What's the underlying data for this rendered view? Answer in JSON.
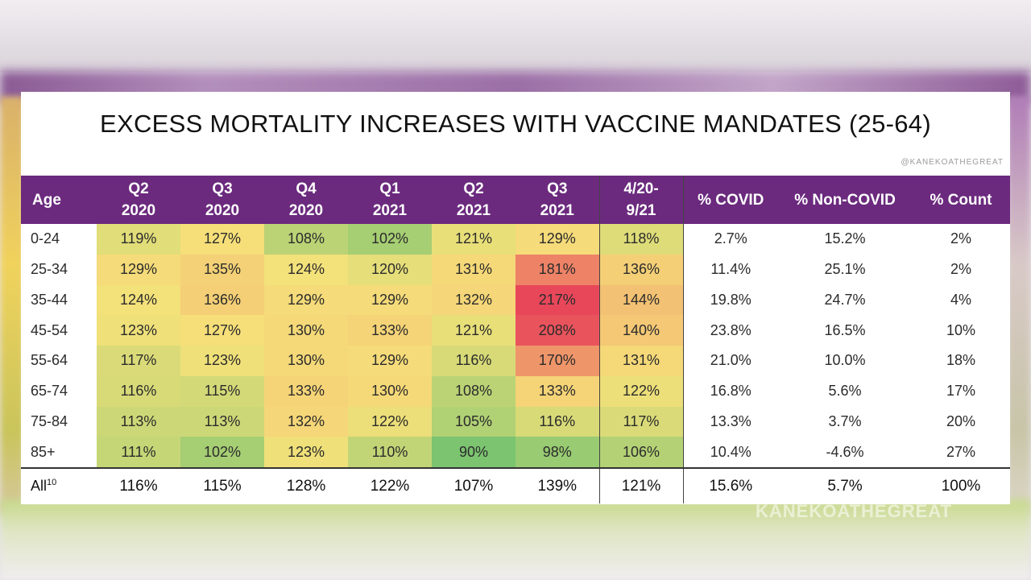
{
  "title": "EXCESS MORTALITY INCREASES WITH VACCINE MANDATES (25-64)",
  "watermark_small": "@KANEKOATHEGREAT",
  "watermark_big": "KANEKOATHEGREAT",
  "chart_data": {
    "type": "table",
    "columns": [
      {
        "line1": "Age",
        "line2": ""
      },
      {
        "line1": "Q2",
        "line2": "2020"
      },
      {
        "line1": "Q3",
        "line2": "2020"
      },
      {
        "line1": "Q4",
        "line2": "2020"
      },
      {
        "line1": "Q1",
        "line2": "2021"
      },
      {
        "line1": "Q2",
        "line2": "2021"
      },
      {
        "line1": "Q3",
        "line2": "2021"
      },
      {
        "line1": "4/20-",
        "line2": "9/21"
      },
      {
        "line1": "% COVID",
        "line2": ""
      },
      {
        "line1": "% Non-COVID",
        "line2": ""
      },
      {
        "line1": "% Count",
        "line2": ""
      }
    ],
    "rows": [
      {
        "age": "0-24",
        "values": [
          119,
          127,
          108,
          102,
          121,
          129,
          118
        ],
        "covid": "2.7%",
        "noncovid": "15.2%",
        "count": "2%"
      },
      {
        "age": "25-34",
        "values": [
          129,
          135,
          124,
          120,
          131,
          181,
          136
        ],
        "covid": "11.4%",
        "noncovid": "25.1%",
        "count": "2%"
      },
      {
        "age": "35-44",
        "values": [
          124,
          136,
          129,
          129,
          132,
          217,
          144
        ],
        "covid": "19.8%",
        "noncovid": "24.7%",
        "count": "4%"
      },
      {
        "age": "45-54",
        "values": [
          123,
          127,
          130,
          133,
          121,
          208,
          140
        ],
        "covid": "23.8%",
        "noncovid": "16.5%",
        "count": "10%"
      },
      {
        "age": "55-64",
        "values": [
          117,
          123,
          130,
          129,
          116,
          170,
          131
        ],
        "covid": "21.0%",
        "noncovid": "10.0%",
        "count": "18%"
      },
      {
        "age": "65-74",
        "values": [
          116,
          115,
          133,
          130,
          108,
          133,
          122
        ],
        "covid": "16.8%",
        "noncovid": "5.6%",
        "count": "17%"
      },
      {
        "age": "75-84",
        "values": [
          113,
          113,
          132,
          122,
          105,
          116,
          117
        ],
        "covid": "13.3%",
        "noncovid": "3.7%",
        "count": "20%"
      },
      {
        "age": "85+",
        "values": [
          111,
          102,
          123,
          110,
          90,
          98,
          106
        ],
        "covid": "10.4%",
        "noncovid": "-4.6%",
        "count": "27%"
      }
    ],
    "total": {
      "age": "All",
      "age_sup": "10",
      "values": [
        "116%",
        "115%",
        "128%",
        "122%",
        "107%",
        "139%",
        "121%"
      ],
      "covid": "15.6%",
      "noncovid": "5.7%",
      "count": "100%"
    },
    "value_suffix": "%",
    "colors": {
      "header": "#6b2a7e",
      "low": "#7cc470",
      "mid": "#f6e27a",
      "high": "#e8475a"
    }
  }
}
